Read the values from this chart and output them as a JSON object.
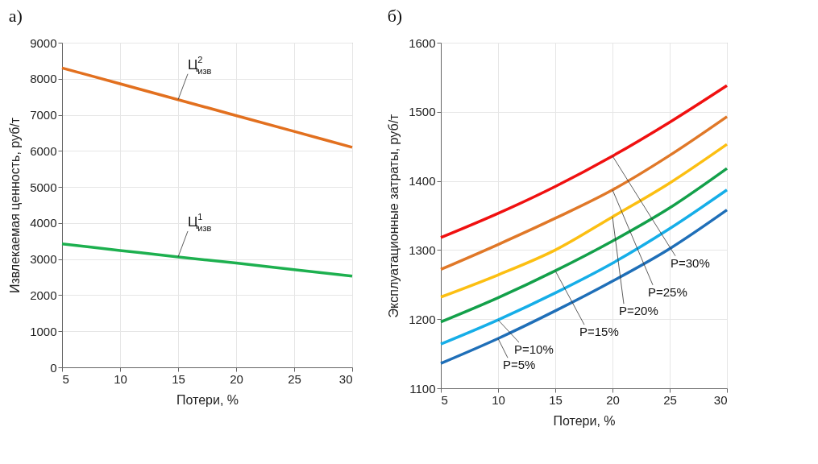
{
  "chart_data": [
    {
      "type": "line",
      "title": "а)",
      "xlabel": "Потери, %",
      "ylabel": "Извлекаемая ценность, руб/т",
      "x": [
        5,
        10,
        15,
        20,
        25,
        30
      ],
      "xlim": [
        5,
        30
      ],
      "xticks": [
        5,
        10,
        15,
        20,
        25,
        30
      ],
      "ylim": [
        0,
        9000
      ],
      "yticks": [
        0,
        1000,
        2000,
        3000,
        4000,
        5000,
        6000,
        7000,
        8000,
        9000
      ],
      "grid": true,
      "series": [
        {
          "name": "Ц$^{2}$$_{изв}$",
          "color": "#e2701f",
          "values": [
            8300,
            7860,
            7420,
            6980,
            6540,
            6100
          ]
        },
        {
          "name": "Ц$^{1}$$_{изв}$",
          "color": "#1db04f",
          "values": [
            3420,
            3240,
            3060,
            2890,
            2710,
            2530
          ]
        }
      ]
    },
    {
      "type": "line",
      "title": "б)",
      "xlabel": "Потери, %",
      "ylabel": "Эксплуатационные затраты, руб/т",
      "x": [
        5,
        10,
        15,
        20,
        25,
        30
      ],
      "xlim": [
        5,
        30
      ],
      "xticks": [
        5,
        10,
        15,
        20,
        25,
        30
      ],
      "ylim": [
        1100,
        1600
      ],
      "yticks": [
        1100,
        1200,
        1300,
        1400,
        1500,
        1600
      ],
      "grid": true,
      "series": [
        {
          "name": "P=5%",
          "color": "#1f6fb8",
          "values": [
            1136,
            1172,
            1212,
            1255,
            1302,
            1358
          ]
        },
        {
          "name": "P=10%",
          "color": "#16aee8",
          "values": [
            1164,
            1199,
            1238,
            1281,
            1331,
            1387
          ]
        },
        {
          "name": "P=15%",
          "color": "#13a04a",
          "values": [
            1196,
            1231,
            1270,
            1313,
            1361,
            1418
          ]
        },
        {
          "name": "P=20%",
          "color": "#fcbf12",
          "values": [
            1232,
            1264,
            1300,
            1348,
            1397,
            1453
          ]
        },
        {
          "name": "P=25%",
          "color": "#e07828",
          "values": [
            1272,
            1308,
            1346,
            1387,
            1437,
            1493
          ]
        },
        {
          "name": "P=30%",
          "color": "#f01010",
          "values": [
            1318,
            1353,
            1392,
            1436,
            1485,
            1538
          ]
        }
      ]
    }
  ]
}
